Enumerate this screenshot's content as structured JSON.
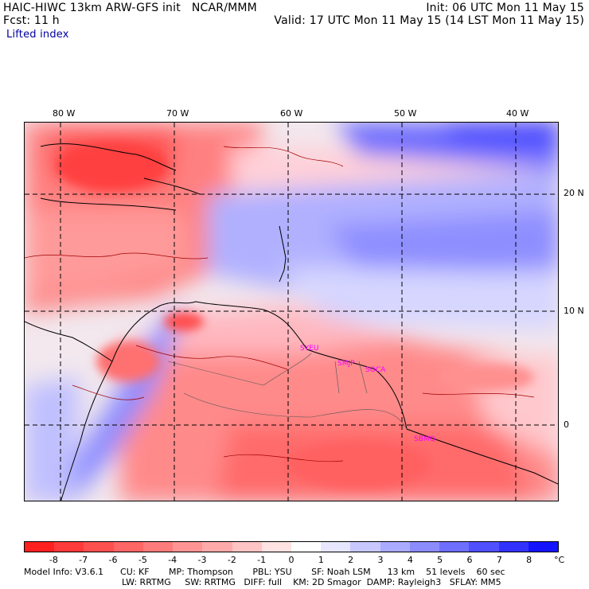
{
  "header": {
    "model_title": "HAIC-HIWC 13km ARW-GFS init",
    "institution": "NCAR/MMM",
    "init_time": "Init: 06 UTC Mon 11 May 15",
    "forecast": "Fcst:    11 h",
    "valid_time": "Valid: 17 UTC Mon 11 May 15 (14 LST Mon 11 May 15)",
    "field_name": "Lifted index"
  },
  "map": {
    "lon_labels": [
      "80 W",
      "70 W",
      "60 W",
      "50 W",
      "40 W"
    ],
    "lat_labels": [
      "20 N",
      "10 N",
      "0"
    ],
    "stations": [
      "SYEU",
      "SMJP",
      "SOCA",
      "SBMQ"
    ]
  },
  "colorbar": {
    "unit": "°C",
    "labels": [
      "-8",
      "-7",
      "-6",
      "-5",
      "-4",
      "-3",
      "-2",
      "-1",
      "0",
      "1",
      "2",
      "3",
      "4",
      "5",
      "6",
      "7",
      "8"
    ],
    "colors": [
      "#ff2020",
      "#ff3a3a",
      "#ff5050",
      "#ff6666",
      "#ff7c7c",
      "#ff9494",
      "#ffaaaa",
      "#ffc4c4",
      "#ffe2e2",
      "#ffffff",
      "#e6e6ff",
      "#c8c8ff",
      "#aaaaff",
      "#8c8cff",
      "#6e6eff",
      "#5050ff",
      "#3232ff",
      "#1414ff"
    ]
  },
  "model_info": {
    "line1": [
      "Model Info: V3.6.1",
      "CU: KF",
      "MP: Thompson",
      "PBL: YSU",
      "SF: Noah LSM",
      "13 km",
      "51 levels",
      "60 sec"
    ],
    "line2": [
      "LW: RRTMG",
      "SW: RRTMG",
      "DIFF: full",
      "KM: 2D Smagor",
      "DAMP: Rayleigh3",
      "SFLAY: MM5"
    ]
  }
}
